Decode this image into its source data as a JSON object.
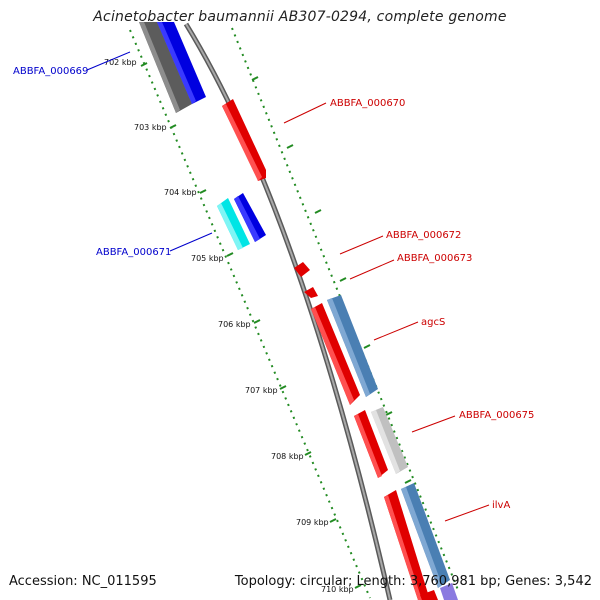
{
  "title": "Acinetobacter baumannii AB307-0294, complete genome",
  "footer": {
    "accession": "Accession: NC_011595",
    "summary": "Topology: circular; Length: 3,760,981 bp; Genes: 3,542"
  },
  "colors": {
    "backbone": "#8f8f8f",
    "tick_marks": "#228b22",
    "forward_cds": "#e00000",
    "reverse_cds": "#0000e0",
    "label_red": "#cc0000",
    "label_blue": "#0000cc",
    "steelblue": "#4a7fb3",
    "cyan": "#00e5e5",
    "lightgray": "#c0c0c0",
    "darkgray": "#5c5c5c"
  },
  "ticks": [
    "702 kbp",
    "703 kbp",
    "704 kbp",
    "705 kbp",
    "706 kbp",
    "707 kbp",
    "708 kbp",
    "709 kbp",
    "710 kbp"
  ],
  "gene_labels": [
    {
      "text": "ABBFA_000669",
      "strand": "reverse"
    },
    {
      "text": "ABBFA_000670",
      "strand": "forward"
    },
    {
      "text": "ABBFA_000671",
      "strand": "reverse"
    },
    {
      "text": "ABBFA_000672",
      "strand": "forward"
    },
    {
      "text": "ABBFA_000673",
      "strand": "forward"
    },
    {
      "text": "agcS",
      "strand": "forward"
    },
    {
      "text": "ABBFA_000675",
      "strand": "forward"
    },
    {
      "text": "ilvA",
      "strand": "forward"
    }
  ]
}
